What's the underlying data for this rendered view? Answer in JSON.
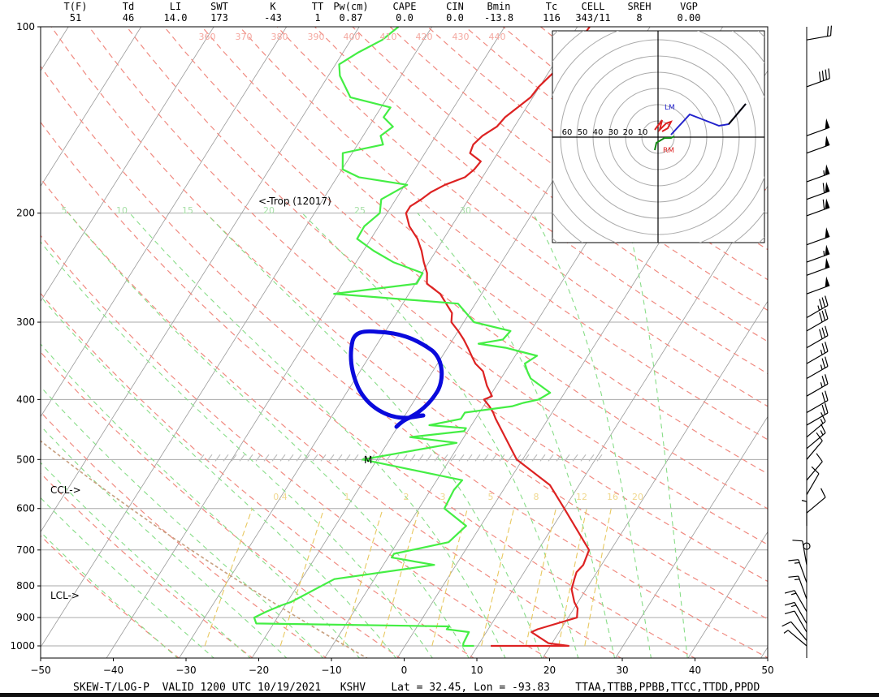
{
  "header": {
    "labels": [
      "T(F)",
      "Td",
      "LI",
      "SWT",
      "K",
      "TT",
      "Pw(cm)",
      "CAPE",
      "CIN",
      "Bmin",
      "Tc",
      "CELL",
      "SREH",
      "VGP"
    ],
    "values": [
      "51",
      "46",
      "14.0",
      "173",
      "-43",
      "1",
      "0.87",
      "0.0",
      "0.0",
      "-13.8",
      "116",
      "343/11",
      "8",
      "0.00"
    ]
  },
  "footer": {
    "text": "SKEW-T/LOG-P  VALID 1200 UTC 10/19/2021   KSHV    Lat = 32.45, Lon = -93.83    TTAA,TTBB,PPBB,TTCC,TTDD,PPDD"
  },
  "colors": {
    "temperature": "#dd2222",
    "dewpoint": "#44ee44",
    "dry_adiabat": "#f08a80",
    "moist_adiabat": "#88dd88",
    "mixing_ratio": "#e8c860",
    "isotherm": "#999999",
    "annotation_blue": "#0a0adc",
    "parcel_brown": "#c8a080"
  },
  "chart_data": {
    "type": "line",
    "x_axis": {
      "label": "",
      "range": [
        -50,
        50
      ],
      "ticks": [
        "−50",
        "−40",
        "−30",
        "−20",
        "−10",
        "0",
        "10",
        "20",
        "30",
        "40",
        "50"
      ]
    },
    "y_axis": {
      "scale": "log",
      "range_hPa": [
        1000,
        100
      ],
      "ticks": [
        "100",
        "200",
        "300",
        "400",
        "500",
        "600",
        "700",
        "800",
        "900",
        "1000"
      ]
    },
    "grid": true,
    "isotherm_ticks": [
      -50,
      -40,
      -30,
      -20,
      -10,
      0,
      10,
      20,
      30,
      40,
      50
    ],
    "pressure_ticks": [
      100,
      200,
      300,
      400,
      500,
      600,
      700,
      800,
      900,
      1000
    ],
    "series": [
      {
        "points": [
          [
            1000,
            11.8
          ],
          [
            1000,
            22.5
          ],
          [
            990,
            19.5
          ],
          [
            950,
            16.2
          ],
          [
            940,
            16.8
          ],
          [
            900,
            21.2
          ],
          [
            870,
            20.5
          ],
          [
            850,
            19.5
          ],
          [
            810,
            18.0
          ],
          [
            780,
            17.5
          ],
          [
            760,
            17.2
          ],
          [
            740,
            17.5
          ],
          [
            700,
            17.0
          ],
          [
            600,
            10.0
          ],
          [
            550,
            6.0
          ],
          [
            500,
            -0.8
          ],
          [
            430,
            -7.2
          ],
          [
            420,
            -8.1
          ],
          [
            410,
            -9.2
          ],
          [
            400,
            -10.5
          ],
          [
            395,
            -9.7
          ],
          [
            380,
            -11.3
          ],
          [
            360,
            -13.1
          ],
          [
            350,
            -14.8
          ],
          [
            340,
            -16.0
          ],
          [
            330,
            -17.2
          ],
          [
            320,
            -18.5
          ],
          [
            310,
            -20.0
          ],
          [
            300,
            -21.7
          ],
          [
            290,
            -22.4
          ],
          [
            270,
            -25.7
          ],
          [
            260,
            -28.4
          ],
          [
            250,
            -29.3
          ],
          [
            240,
            -30.7
          ],
          [
            230,
            -32.0
          ],
          [
            220,
            -33.6
          ],
          [
            210,
            -35.8
          ],
          [
            200,
            -37.4
          ],
          [
            195,
            -37.4
          ],
          [
            190,
            -36.5
          ],
          [
            185,
            -35.8
          ],
          [
            180,
            -34.5
          ],
          [
            175,
            -32.4
          ],
          [
            170,
            -31.8
          ],
          [
            165,
            -31.6
          ],
          [
            160,
            -33.8
          ],
          [
            155,
            -34.1
          ],
          [
            150,
            -33.6
          ],
          [
            145,
            -32.4
          ],
          [
            140,
            -32.1
          ],
          [
            130,
            -30.3
          ],
          [
            125,
            -30.1
          ],
          [
            120,
            -29.5
          ],
          [
            115,
            -28.8
          ],
          [
            110,
            -28.7
          ],
          [
            100,
            -28.3
          ]
        ]
      },
      {
        "points": [
          [
            1000,
            9.5
          ],
          [
            1000,
            8.0
          ],
          [
            990,
            7.8
          ],
          [
            950,
            7.6
          ],
          [
            940,
            4.3
          ],
          [
            930,
            4.4
          ],
          [
            920,
            -22.4
          ],
          [
            900,
            -23.2
          ],
          [
            880,
            -22.0
          ],
          [
            860,
            -20.5
          ],
          [
            850,
            -19.5
          ],
          [
            780,
            -15.5
          ],
          [
            740,
            -3.0
          ],
          [
            720,
            -9.5
          ],
          [
            710,
            -9.5
          ],
          [
            680,
            -3.0
          ],
          [
            640,
            -2.0
          ],
          [
            600,
            -6.5
          ],
          [
            560,
            -6.8
          ],
          [
            540,
            -6.5
          ],
          [
            500,
            -22.0
          ],
          [
            470,
            -10.5
          ],
          [
            460,
            -17.4
          ],
          [
            450,
            -10.5
          ],
          [
            445,
            -10.5
          ],
          [
            440,
            -15.8
          ],
          [
            430,
            -12.0
          ],
          [
            420,
            -12.0
          ],
          [
            410,
            -6.0
          ],
          [
            405,
            -4.8
          ],
          [
            400,
            -3.0
          ],
          [
            390,
            -2.0
          ],
          [
            370,
            -5.9
          ],
          [
            360,
            -7.0
          ],
          [
            350,
            -8.0
          ],
          [
            340,
            -7.0
          ],
          [
            330,
            -12.0
          ],
          [
            325,
            -16.1
          ],
          [
            320,
            -13.1
          ],
          [
            310,
            -12.8
          ],
          [
            300,
            -18.6
          ],
          [
            280,
            -22.4
          ],
          [
            270,
            -40.3
          ],
          [
            260,
            -29.8
          ],
          [
            250,
            -29.9
          ],
          [
            240,
            -34.9
          ],
          [
            230,
            -38.6
          ],
          [
            220,
            -41.9
          ],
          [
            210,
            -42.0
          ],
          [
            200,
            -41.0
          ],
          [
            190,
            -42.0
          ],
          [
            180,
            -39.7
          ],
          [
            175,
            -47.0
          ],
          [
            170,
            -49.9
          ],
          [
            160,
            -51.3
          ],
          [
            155,
            -46.5
          ],
          [
            150,
            -47.6
          ],
          [
            145,
            -46.7
          ],
          [
            140,
            -48.8
          ],
          [
            135,
            -48.7
          ],
          [
            130,
            -55.1
          ],
          [
            120,
            -58.4
          ],
          [
            115,
            -59.5
          ],
          [
            110,
            -57.9
          ],
          [
            105,
            -55.7
          ],
          [
            100,
            -54.6
          ]
        ]
      }
    ],
    "mixing_ratio_labels": [
      "0.4",
      "1",
      "2",
      "3",
      "5",
      "8",
      "12",
      "16",
      "20"
    ],
    "moist_labels": [
      "5",
      "10",
      "15",
      "20",
      "25",
      "30"
    ],
    "dry_labels": [
      "360",
      "370",
      "380",
      "390",
      "400",
      "410",
      "420",
      "430",
      "440"
    ],
    "annotations": {
      "tropopause": "<-Trop (12017)",
      "ccl": "CCL->",
      "lcl": "LCL->",
      "mark_500": "M"
    },
    "hodograph": {
      "rings": [
        "60",
        "50",
        "40",
        "30",
        "20",
        "10"
      ],
      "labels": {
        "lm": "LM",
        "rm": "RM"
      }
    },
    "wind_barbs": [
      {
        "p": 105,
        "dir": 260,
        "spd": 20
      },
      {
        "p": 125,
        "dir": 250,
        "spd": 40
      },
      {
        "p": 150,
        "dir": 250,
        "spd": 50
      },
      {
        "p": 160,
        "dir": 250,
        "spd": 50
      },
      {
        "p": 178,
        "dir": 250,
        "spd": 55
      },
      {
        "p": 190,
        "dir": 250,
        "spd": 60
      },
      {
        "p": 202,
        "dir": 250,
        "spd": 60
      },
      {
        "p": 225,
        "dir": 250,
        "spd": 50
      },
      {
        "p": 240,
        "dir": 250,
        "spd": 55
      },
      {
        "p": 252,
        "dir": 250,
        "spd": 50
      },
      {
        "p": 270,
        "dir": 250,
        "spd": 50
      },
      {
        "p": 295,
        "dir": 240,
        "spd": 35
      },
      {
        "p": 310,
        "dir": 240,
        "spd": 30
      },
      {
        "p": 330,
        "dir": 240,
        "spd": 30
      },
      {
        "p": 350,
        "dir": 240,
        "spd": 25
      },
      {
        "p": 370,
        "dir": 240,
        "spd": 25
      },
      {
        "p": 395,
        "dir": 240,
        "spd": 25
      },
      {
        "p": 420,
        "dir": 240,
        "spd": 20
      },
      {
        "p": 440,
        "dir": 240,
        "spd": 20
      },
      {
        "p": 460,
        "dir": 230,
        "spd": 15
      },
      {
        "p": 480,
        "dir": 230,
        "spd": 15
      },
      {
        "p": 500,
        "dir": 220,
        "spd": 10
      },
      {
        "p": 540,
        "dir": 220,
        "spd": 10
      },
      {
        "p": 570,
        "dir": 210,
        "spd": 10
      },
      {
        "p": 610,
        "dir": 230,
        "spd": 10
      },
      {
        "p": 640,
        "dir": 180,
        "spd": 5
      },
      {
        "p": 690,
        "dir": 0,
        "spd": 0
      },
      {
        "p": 740,
        "dir": 170,
        "spd": 10
      },
      {
        "p": 790,
        "dir": 160,
        "spd": 15
      },
      {
        "p": 840,
        "dir": 160,
        "spd": 15
      },
      {
        "p": 880,
        "dir": 150,
        "spd": 15
      },
      {
        "p": 920,
        "dir": 150,
        "spd": 15
      },
      {
        "p": 950,
        "dir": 150,
        "spd": 10
      },
      {
        "p": 980,
        "dir": 140,
        "spd": 10
      },
      {
        "p": 1000,
        "dir": 130,
        "spd": 5
      }
    ]
  }
}
